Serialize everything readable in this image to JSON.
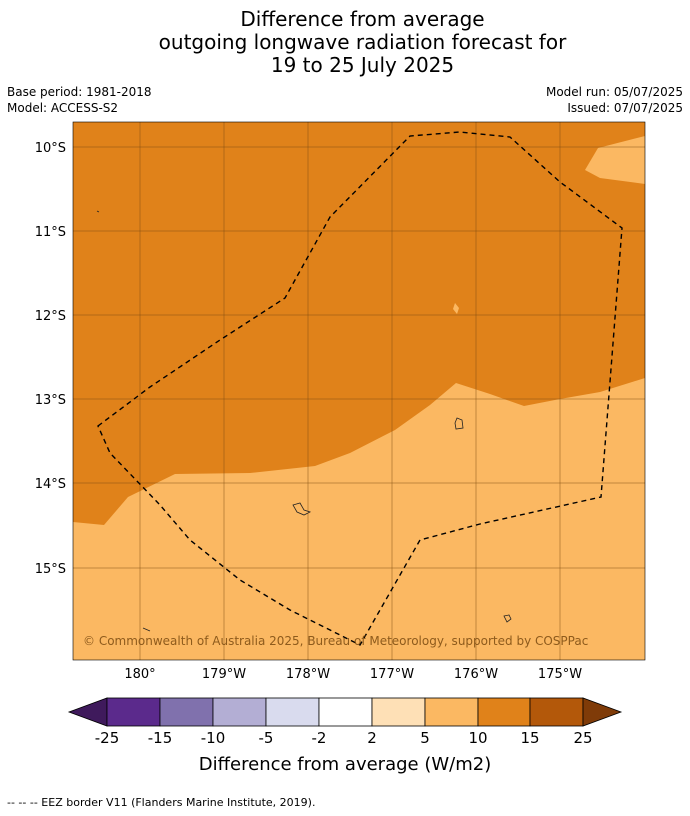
{
  "title": {
    "line1": "Difference from average",
    "line2": "outgoing longwave radiation forecast for",
    "line3": "19 to 25 July 2025"
  },
  "meta": {
    "base_period": "Base period: 1981-2018",
    "model": "Model: ACCESS-S2",
    "model_run": "Model run: 05/07/2025",
    "issued": "Issued: 07/07/2025"
  },
  "map": {
    "lat_labels": [
      "10°S",
      "11°S",
      "12°S",
      "13°S",
      "14°S",
      "15°S"
    ],
    "lon_labels": [
      "180°",
      "179°W",
      "178°W",
      "177°W",
      "176°W",
      "175°W"
    ],
    "copyright": "© Commonwealth of Australia 2025, Bureau of Meteorology, supported by COSPPac",
    "region_colors": {
      "10_to_15": "#e0821a",
      "5_to_10": "#fbb862"
    }
  },
  "legend": {
    "tick_labels": [
      "-25",
      "-15",
      "-10",
      "-5",
      "-2",
      "2",
      "5",
      "10",
      "15",
      "25"
    ],
    "colors": [
      "#3f1a5c",
      "#5b2a8c",
      "#8071ad",
      "#b3aed4",
      "#d9dbee",
      "#ffffff",
      "#fee0b6",
      "#fbb862",
      "#e0821a",
      "#b3580a",
      "#7f3b08"
    ],
    "label": "Difference from average (W/m2)"
  },
  "footer": "--  --  -- EEZ border V11 (Flanders Marine Institute, 2019)."
}
